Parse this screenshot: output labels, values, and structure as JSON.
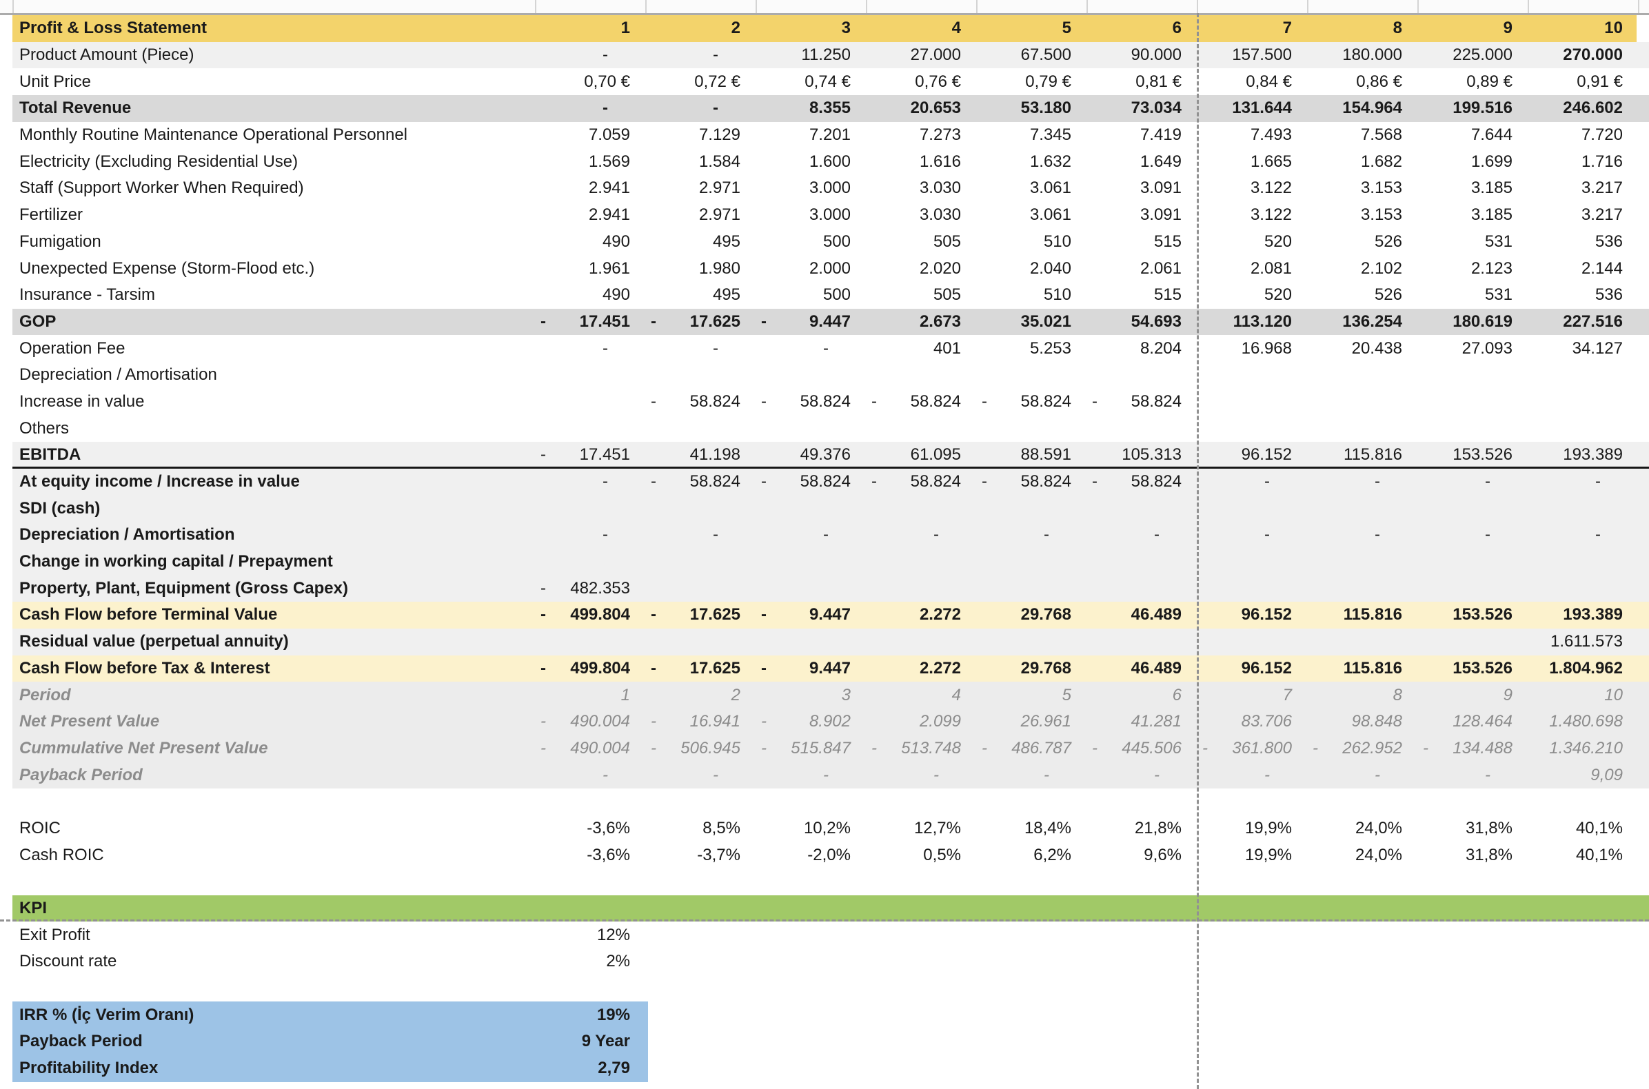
{
  "app": {
    "kind": "spreadsheet-financial-model",
    "sheet_title": "Profit & Loss Statement"
  },
  "colors": {
    "header_gold": "#f3d36b",
    "subtotal_gray": "#d9d9d9",
    "light_band": "#f0f0f0",
    "italic_band": "#ececec",
    "cashflow_cream": "#fcf2cd",
    "kpi_green": "#a1c967",
    "result_blue": "#9dc3e6",
    "italic_text": "#8c8c8c",
    "page_break_dash": "#929292"
  },
  "sheet": {
    "column_headers": [
      "1",
      "2",
      "3",
      "4",
      "5",
      "6",
      "7",
      "8",
      "9",
      "10"
    ],
    "rows": [
      {
        "key": "header",
        "label": "Profit & Loss Statement",
        "bg": "gold",
        "labelBold": true,
        "valuesBold": true,
        "values": [
          "1",
          "2",
          "3",
          "4",
          "5",
          "6",
          "7",
          "8",
          "9",
          "10"
        ]
      },
      {
        "key": "product-amount",
        "label": "Product Amount (Piece)",
        "bg": "band",
        "boldCols": [
          9
        ],
        "values": [
          "-",
          "-",
          "11.250",
          "27.000",
          "67.500",
          "90.000",
          "157.500",
          "180.000",
          "225.000",
          "270.000"
        ]
      },
      {
        "key": "unit-price",
        "label": "Unit Price",
        "bg": "white",
        "values": [
          "0,70 €",
          "0,72 €",
          "0,74 €",
          "0,76 €",
          "0,79 €",
          "0,81 €",
          "0,84 €",
          "0,86 €",
          "0,89 €",
          "0,91 €"
        ]
      },
      {
        "key": "total-revenue",
        "label": "Total Revenue",
        "bg": "gray",
        "labelBold": true,
        "valuesBold": true,
        "values": [
          "-",
          "-",
          "8.355",
          "20.653",
          "53.180",
          "73.034",
          "131.644",
          "154.964",
          "199.516",
          "246.602"
        ]
      },
      {
        "key": "maintenance-personnel",
        "label": "Monthly Routine Maintenance Operational Personnel",
        "bg": "white",
        "values": [
          "7.059",
          "7.129",
          "7.201",
          "7.273",
          "7.345",
          "7.419",
          "7.493",
          "7.568",
          "7.644",
          "7.720"
        ]
      },
      {
        "key": "electricity",
        "label": "Electricity (Excluding Residential Use)",
        "bg": "white",
        "values": [
          "1.569",
          "1.584",
          "1.600",
          "1.616",
          "1.632",
          "1.649",
          "1.665",
          "1.682",
          "1.699",
          "1.716"
        ]
      },
      {
        "key": "staff",
        "label": "Staff (Support Worker When Required)",
        "bg": "white",
        "values": [
          "2.941",
          "2.971",
          "3.000",
          "3.030",
          "3.061",
          "3.091",
          "3.122",
          "3.153",
          "3.185",
          "3.217"
        ]
      },
      {
        "key": "fertilizer",
        "label": "Fertilizer",
        "bg": "white",
        "values": [
          "2.941",
          "2.971",
          "3.000",
          "3.030",
          "3.061",
          "3.091",
          "3.122",
          "3.153",
          "3.185",
          "3.217"
        ]
      },
      {
        "key": "fumigation",
        "label": "Fumigation",
        "bg": "white",
        "values": [
          "490",
          "495",
          "500",
          "505",
          "510",
          "515",
          "520",
          "526",
          "531",
          "536"
        ]
      },
      {
        "key": "unexpected-expense",
        "label": "Unexpected Expense (Storm-Flood etc.)",
        "bg": "white",
        "values": [
          "1.961",
          "1.980",
          "2.000",
          "2.020",
          "2.040",
          "2.061",
          "2.081",
          "2.102",
          "2.123",
          "2.144"
        ]
      },
      {
        "key": "insurance",
        "label": "Insurance - Tarsim",
        "bg": "white",
        "values": [
          "490",
          "495",
          "500",
          "505",
          "510",
          "515",
          "520",
          "526",
          "531",
          "536"
        ]
      },
      {
        "key": "gop",
        "label": "GOP",
        "bg": "gray",
        "labelBold": true,
        "valuesBold": true,
        "values": [
          "- 17.451",
          "- 17.625",
          "- 9.447",
          "2.673",
          "35.021",
          "54.693",
          "113.120",
          "136.254",
          "180.619",
          "227.516"
        ]
      },
      {
        "key": "operation-fee",
        "label": "Operation Fee",
        "bg": "white",
        "values": [
          "-",
          "-",
          "-",
          "401",
          "5.253",
          "8.204",
          "16.968",
          "20.438",
          "27.093",
          "34.127"
        ]
      },
      {
        "key": "depreciation-1",
        "label": "Depreciation / Amortisation",
        "bg": "white",
        "values": [
          "",
          "",
          "",
          "",
          "",
          "",
          "",
          "",
          "",
          ""
        ]
      },
      {
        "key": "increase-in-value",
        "label": "Increase in value",
        "bg": "white",
        "values": [
          "",
          "- 58.824",
          "- 58.824",
          "- 58.824",
          "- 58.824",
          "- 58.824",
          "",
          "",
          "",
          ""
        ]
      },
      {
        "key": "others",
        "label": "Others",
        "bg": "white",
        "values": [
          "",
          "",
          "",
          "",
          "",
          "",
          "",
          "",
          "",
          ""
        ]
      },
      {
        "key": "ebitda",
        "label": "EBITDA",
        "bg": "band",
        "labelBold": true,
        "ebitdaBorder": true,
        "values": [
          "- 17.451",
          "41.198",
          "49.376",
          "61.095",
          "88.591",
          "105.313",
          "96.152",
          "115.816",
          "153.526",
          "193.389"
        ]
      },
      {
        "key": "at-equity-income",
        "label": "At equity income / Increase in value",
        "bg": "band",
        "labelBold": true,
        "values": [
          "-",
          "- 58.824",
          "- 58.824",
          "- 58.824",
          "- 58.824",
          "- 58.824",
          "-",
          "-",
          "-",
          "-"
        ]
      },
      {
        "key": "sdi-cash",
        "label": "SDI (cash)",
        "bg": "band",
        "labelBold": true,
        "values": [
          "",
          "",
          "",
          "",
          "",
          "",
          "",
          "",
          "",
          ""
        ]
      },
      {
        "key": "depreciation-2",
        "label": "Depreciation / Amortisation",
        "bg": "band",
        "labelBold": true,
        "values": [
          "-",
          "-",
          "-",
          "-",
          "-",
          "-",
          "-",
          "-",
          "-",
          "-"
        ]
      },
      {
        "key": "change-working-capital",
        "label": "Change in working capital / Prepayment",
        "bg": "band",
        "labelBold": true,
        "values": [
          "",
          "",
          "",
          "",
          "",
          "",
          "",
          "",
          "",
          ""
        ]
      },
      {
        "key": "ppe-gross-capex",
        "label": "Property, Plant, Equipment (Gross Capex)",
        "bg": "band",
        "labelBold": true,
        "values": [
          "- 482.353",
          "",
          "",
          "",
          "",
          "",
          "",
          "",
          "",
          ""
        ]
      },
      {
        "key": "cf-before-terminal-value",
        "label": "Cash Flow before Terminal Value",
        "bg": "cream",
        "labelBold": true,
        "valuesBold": true,
        "values": [
          "- 499.804",
          "- 17.625",
          "- 9.447",
          "2.272",
          "29.768",
          "46.489",
          "96.152",
          "115.816",
          "153.526",
          "193.389"
        ]
      },
      {
        "key": "residual-value",
        "label": "Residual value (perpetual annuity)",
        "bg": "band",
        "labelBold": true,
        "values": [
          "",
          "",
          "",
          "",
          "",
          "",
          "",
          "",
          "",
          "1.611.573"
        ]
      },
      {
        "key": "cf-before-tax-interest",
        "label": "Cash Flow before Tax & Interest",
        "bg": "cream",
        "labelBold": true,
        "valuesBold": true,
        "values": [
          "- 499.804",
          "- 17.625",
          "- 9.447",
          "2.272",
          "29.768",
          "46.489",
          "96.152",
          "115.816",
          "153.526",
          "1.804.962"
        ]
      },
      {
        "key": "period",
        "label": "Period",
        "bg": "band2",
        "italic": true,
        "values": [
          "1",
          "2",
          "3",
          "4",
          "5",
          "6",
          "7",
          "8",
          "9",
          "10"
        ]
      },
      {
        "key": "net-present-value",
        "label": "Net Present Value",
        "bg": "band2",
        "italic": true,
        "values": [
          "- 490.004",
          "- 16.941",
          "- 8.902",
          "2.099",
          "26.961",
          "41.281",
          "83.706",
          "98.848",
          "128.464",
          "1.480.698"
        ]
      },
      {
        "key": "cummulative-npv",
        "label": "Cummulative Net Present Value",
        "bg": "band2",
        "italic": true,
        "values": [
          "- 490.004",
          "- 506.945",
          "- 515.847",
          "- 513.748",
          "- 486.787",
          "- 445.506",
          "- 361.800",
          "- 262.952",
          "- 134.488",
          "1.346.210"
        ]
      },
      {
        "key": "payback-period-row",
        "label": "Payback Period",
        "bg": "band2",
        "italic": true,
        "values": [
          "-",
          "-",
          "-",
          "-",
          "-",
          "-",
          "-",
          "-",
          "-",
          "9,09"
        ]
      },
      {
        "key": "spacer-1",
        "label": "",
        "bg": "white",
        "values": [
          "",
          "",
          "",
          "",
          "",
          "",
          "",
          "",
          "",
          ""
        ]
      },
      {
        "key": "roic",
        "label": "ROIC",
        "bg": "white",
        "values": [
          "-3,6%",
          "8,5%",
          "10,2%",
          "12,7%",
          "18,4%",
          "21,8%",
          "19,9%",
          "24,0%",
          "31,8%",
          "40,1%"
        ]
      },
      {
        "key": "cash-roic",
        "label": "Cash ROIC",
        "bg": "white",
        "values": [
          "-3,6%",
          "-3,7%",
          "-2,0%",
          "0,5%",
          "6,2%",
          "9,6%",
          "19,9%",
          "24,0%",
          "31,8%",
          "40,1%"
        ]
      },
      {
        "key": "spacer-2",
        "label": "",
        "bg": "white",
        "values": [
          "",
          "",
          "",
          "",
          "",
          "",
          "",
          "",
          "",
          ""
        ]
      },
      {
        "key": "kpi-header",
        "label": "KPI",
        "bg": "green",
        "labelBold": true,
        "values": [
          "",
          "",
          "",
          "",
          "",
          "",
          "",
          "",
          "",
          ""
        ]
      },
      {
        "key": "exit-profit",
        "label": "Exit Profit",
        "bg": "white",
        "values": [
          "12%",
          "",
          "",
          "",
          "",
          "",
          "",
          "",
          "",
          ""
        ]
      },
      {
        "key": "discount-rate",
        "label": "Discount rate",
        "bg": "white",
        "values": [
          "2%",
          "",
          "",
          "",
          "",
          "",
          "",
          "",
          "",
          ""
        ]
      },
      {
        "key": "spacer-3",
        "label": "",
        "bg": "white",
        "values": [
          "",
          "",
          "",
          "",
          "",
          "",
          "",
          "",
          "",
          ""
        ]
      },
      {
        "key": "irr",
        "label": "IRR % (İç Verim Oranı)",
        "bg": "blue",
        "labelBold": true,
        "valuesBold": true,
        "values": [
          "19%",
          "",
          "",
          "",
          "",
          "",
          "",
          "",
          "",
          ""
        ]
      },
      {
        "key": "payback-period-kpi",
        "label": "Payback Period",
        "bg": "blue",
        "labelBold": true,
        "valuesBold": true,
        "values": [
          "9 Year",
          "",
          "",
          "",
          "",
          "",
          "",
          "",
          "",
          ""
        ]
      },
      {
        "key": "profitability-index",
        "label": "Profitability Index",
        "bg": "blue",
        "labelBold": true,
        "valuesBold": true,
        "values": [
          "2,79",
          "",
          "",
          "",
          "",
          "",
          "",
          "",
          "",
          ""
        ]
      }
    ]
  }
}
